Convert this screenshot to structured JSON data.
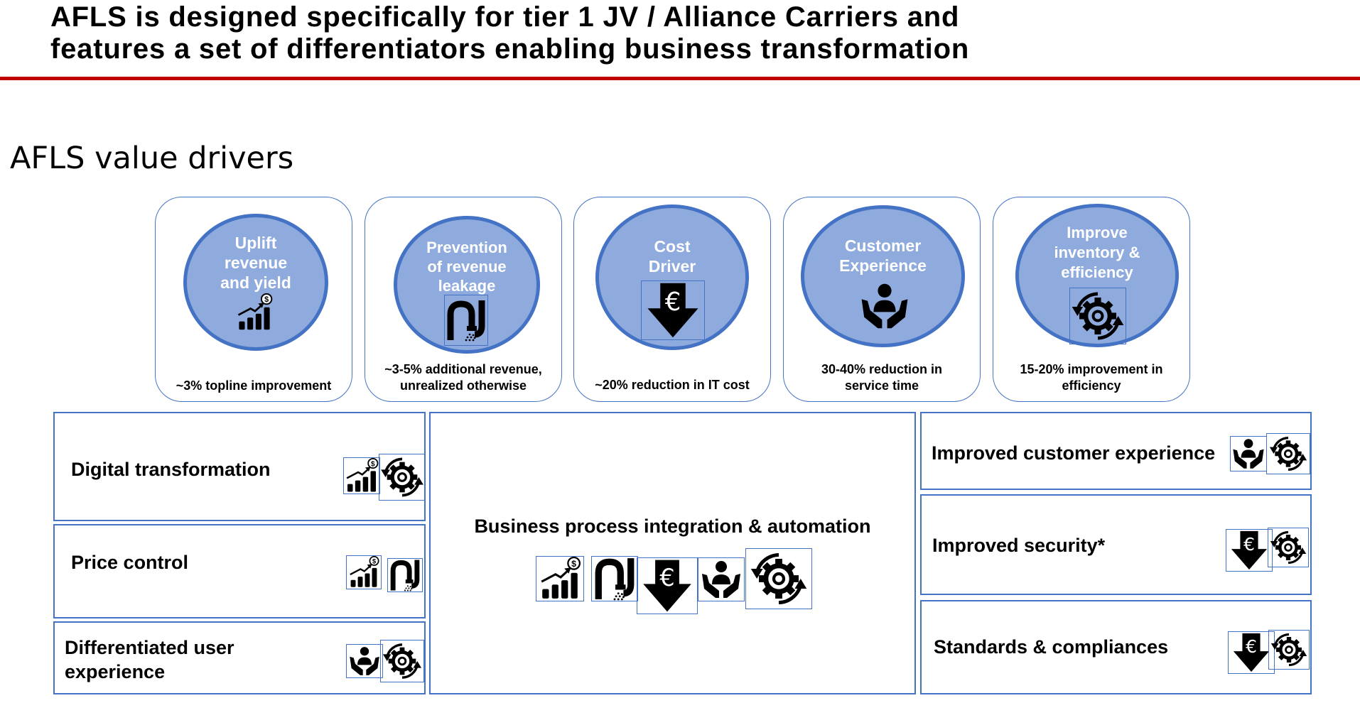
{
  "header": {
    "title_line1": "AFLS is designed specifically for tier 1 JV / Alliance Carriers and",
    "title_line2": "features a set of differentiators enabling business transformation",
    "subtitle": "AFLS value drivers"
  },
  "colors": {
    "accent": "#4472c4",
    "circle_fill": "#8faadc",
    "rule": "#c00000"
  },
  "drivers": [
    {
      "line1": "Uplift",
      "line2": "revenue",
      "line3": "and yield",
      "icon": "revenue-growth-icon",
      "caption1": "~3% topline improvement",
      "caption2": ""
    },
    {
      "line1": "Prevention",
      "line2": "of revenue",
      "line3": "leakage",
      "icon": "pipe-leak-icon",
      "caption1": "~3-5% additional revenue,",
      "caption2": "unrealized otherwise"
    },
    {
      "line1": "Cost",
      "line2": "Driver",
      "line3": "",
      "icon": "euro-down-arrow-icon",
      "caption1": "~20% reduction in IT cost",
      "caption2": ""
    },
    {
      "line1": "Customer",
      "line2": "Experience",
      "line3": "",
      "icon": "customer-hands-icon",
      "caption1": "30-40% reduction in",
      "caption2": "service time"
    },
    {
      "line1": "Improve",
      "line2": "inventory &",
      "line3": "efficiency",
      "icon": "gear-cycle-icon",
      "caption1": "15-20% improvement in",
      "caption2": "efficiency"
    }
  ],
  "differentiators": {
    "digital_transformation": "Digital transformation",
    "price_control": "Price control",
    "user_experience_line1": "Differentiated user",
    "user_experience_line2": "experience",
    "business_process": "Business process integration & automation",
    "customer_experience": "Improved customer experience",
    "security": "Improved security*",
    "standards": "Standards & compliances"
  }
}
